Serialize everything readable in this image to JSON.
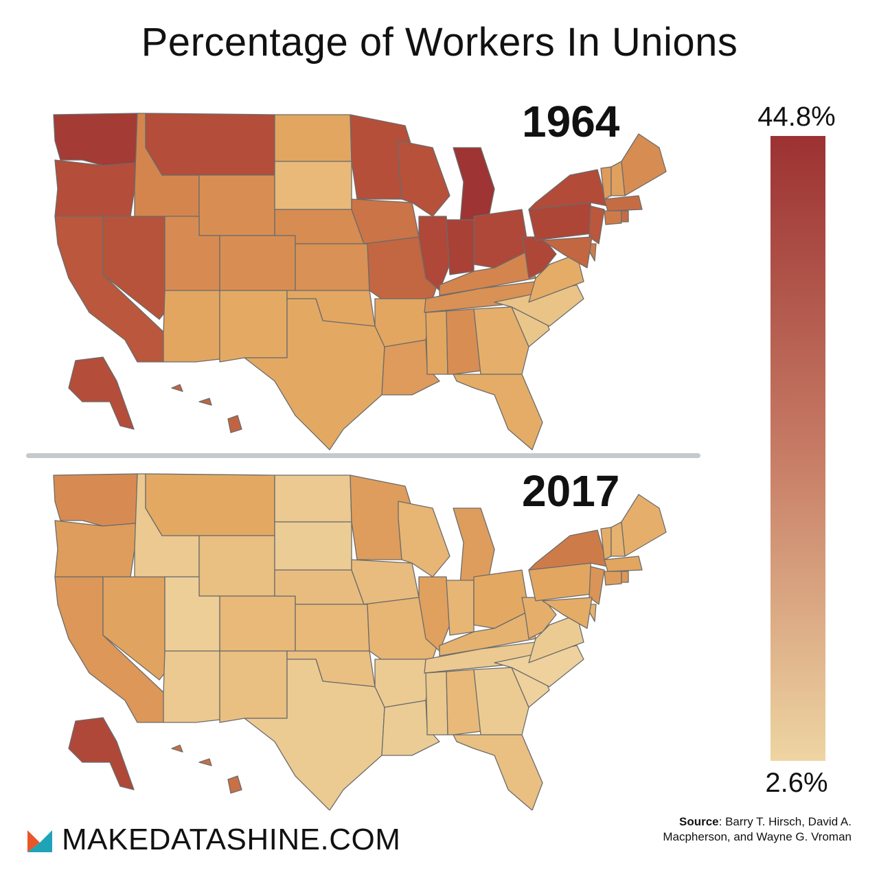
{
  "title": "Percentage of Workers In Unions",
  "maps": [
    {
      "year": "1964",
      "states": {
        "WA": 0.93,
        "OR": 0.78,
        "CA": 0.72,
        "NV": 0.74,
        "ID": 0.5,
        "MT": 0.78,
        "WY": 0.44,
        "UT": 0.46,
        "CO": 0.44,
        "AZ": 0.28,
        "NM": 0.25,
        "ND": 0.28,
        "SD": 0.16,
        "NE": 0.45,
        "KS": 0.42,
        "OK": 0.27,
        "TX": 0.26,
        "MN": 0.77,
        "IA": 0.58,
        "MO": 0.65,
        "AR": 0.28,
        "LA": 0.35,
        "WI": 0.75,
        "IL": 0.82,
        "MI": 0.98,
        "IN": 0.88,
        "OH": 0.82,
        "KY": 0.5,
        "TN": 0.42,
        "MS": 0.28,
        "AL": 0.44,
        "GA": 0.22,
        "FL": 0.24,
        "SC": 0.08,
        "NC": 0.1,
        "VA": 0.24,
        "WV": 0.83,
        "PA": 0.84,
        "NY": 0.8,
        "ME": 0.45,
        "NH": 0.32,
        "VT": 0.35,
        "MA": 0.62,
        "CT": 0.55,
        "RI": 0.62,
        "NJ": 0.72,
        "DE": 0.55,
        "MD": 0.65,
        "AK": 0.78,
        "HI": 0.66
      }
    },
    {
      "year": "2017",
      "states": {
        "WA": 0.46,
        "OR": 0.34,
        "CA": 0.38,
        "NV": 0.3,
        "ID": 0.06,
        "MT": 0.26,
        "WY": 0.12,
        "UT": 0.03,
        "CO": 0.16,
        "AZ": 0.06,
        "NM": 0.12,
        "ND": 0.06,
        "SD": 0.04,
        "NE": 0.14,
        "KS": 0.16,
        "OK": 0.12,
        "TX": 0.05,
        "MN": 0.34,
        "IA": 0.14,
        "MO": 0.18,
        "AR": 0.05,
        "LA": 0.04,
        "WI": 0.18,
        "IL": 0.32,
        "MI": 0.34,
        "IN": 0.18,
        "OH": 0.26,
        "KY": 0.2,
        "TN": 0.06,
        "MS": 0.07,
        "AL": 0.16,
        "GA": 0.05,
        "FL": 0.12,
        "SC": 0.01,
        "NC": 0.01,
        "VA": 0.05,
        "WV": 0.22,
        "PA": 0.28,
        "NY": 0.55,
        "ME": 0.22,
        "NH": 0.2,
        "VT": 0.24,
        "MA": 0.28,
        "CT": 0.34,
        "RI": 0.38,
        "NJ": 0.4,
        "DE": 0.2,
        "MD": 0.24,
        "AK": 0.82,
        "HI": 0.6
      }
    }
  ],
  "legend": {
    "max_label": "44.8%",
    "min_label": "2.6%",
    "color_high": "#9c3232",
    "color_mid": "#c67a64",
    "color_low": "#eed5a2"
  },
  "colors": {
    "high": "#9c3232",
    "upper": "#b7513a",
    "mid": "#d4854e",
    "lower": "#e4aa64",
    "low": "#eed39e",
    "border": "#6b6b6b"
  },
  "brand": {
    "text": "MAKEDATASHINE.COM",
    "logo_icon": "makedatashine-logo"
  },
  "source": {
    "label": "Source",
    "text": ": Barry T. Hirsch, David A. Macpherson, and Wayne G. Vroman"
  }
}
